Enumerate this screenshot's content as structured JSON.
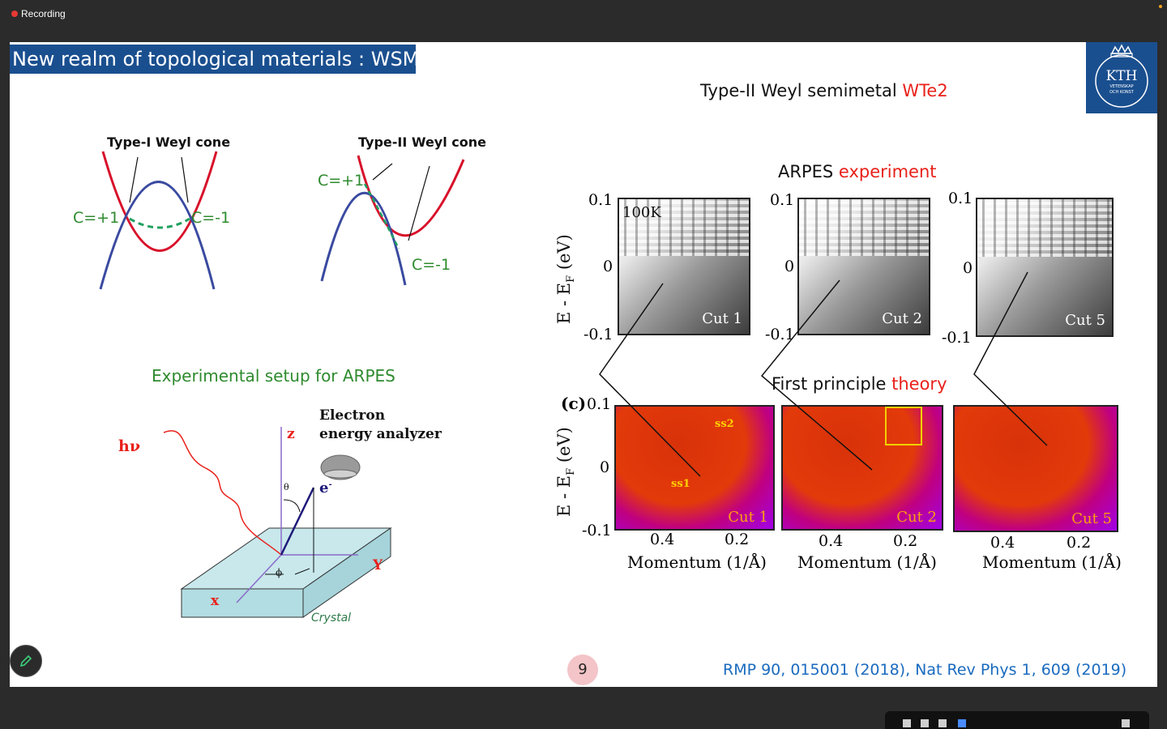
{
  "recording": {
    "label": "Recording"
  },
  "slide": {
    "title": "New realm of topological materials : WSMs",
    "logo": {
      "text": "KTH",
      "sub1": "VETENSKAP",
      "sub2": "OCH KONST"
    },
    "main_heading": {
      "prefix": "Type-II Weyl  semimetal ",
      "material": "WTe2"
    },
    "type1": {
      "title": "Type-I Weyl cone",
      "c_plus": "C=+1",
      "c_minus": "C=-1"
    },
    "type2": {
      "title": "Type-II Weyl cone",
      "c_plus": "C=+1",
      "c_minus": "C=-1"
    },
    "arpes_setup": {
      "title": "Experimental setup for ARPES",
      "hv": "hν",
      "z": "z",
      "x": "x",
      "y": "Y",
      "theta": "θ",
      "phi": "ϕ",
      "electron": "e",
      "analyzer_line1": "Electron",
      "analyzer_line2": "energy analyzer",
      "crystal": "Crystal"
    },
    "arpes_exp": {
      "title_prefix": "ARPES ",
      "title_highlight": "experiment",
      "ylabel": "E - E",
      "ylabel_sub": "F",
      "ylabel_unit": " (eV)",
      "ticks": [
        "0.1",
        "0",
        "-0.1"
      ],
      "temperature": "100K",
      "cuts": [
        "Cut 1",
        "Cut 2",
        "Cut 5"
      ]
    },
    "theory": {
      "title_prefix": "First principle ",
      "title_highlight": "theory",
      "panel_label": "(c)",
      "ticks": [
        "0.1",
        "0",
        "-0.1"
      ],
      "cuts": [
        "Cut 1",
        "Cut 2",
        "Cut 5"
      ],
      "ss1": "ss1",
      "ss2": "ss2",
      "x_ticks": [
        "0.4",
        "0.2"
      ],
      "xlabel": "Momentum (1/Å)"
    },
    "page_number": "9",
    "reference": "RMP 90, 015001 (2018),  Nat Rev Phys 1,  609 (2019)"
  },
  "colors": {
    "title_bg": "#1a4f8f",
    "accent_red": "#e8211a",
    "green": "#2e8b2e",
    "reference_blue": "#1a6bbf"
  }
}
